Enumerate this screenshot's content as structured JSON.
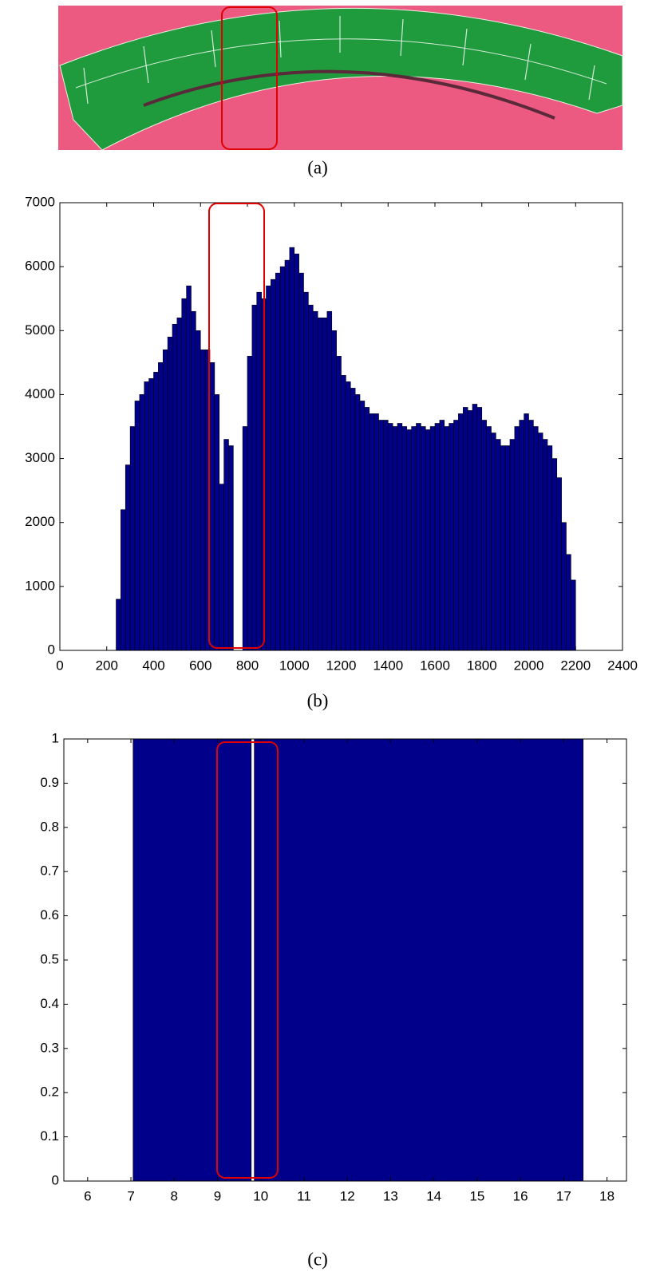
{
  "figure": {
    "caption": "(a)"
  },
  "chart_data": [
    {
      "type": "histogram",
      "caption": "(b)",
      "color": "#00008b",
      "edgecolor": "#000000",
      "bins": [
        240,
        260,
        280,
        300,
        320,
        340,
        360,
        380,
        400,
        420,
        440,
        460,
        480,
        500,
        520,
        540,
        560,
        580,
        600,
        620,
        640,
        660,
        680,
        700,
        720,
        740,
        760,
        780,
        800,
        820,
        840,
        860,
        880,
        900,
        920,
        940,
        960,
        980,
        1000,
        1020,
        1040,
        1060,
        1080,
        1100,
        1120,
        1140,
        1160,
        1180,
        1200,
        1220,
        1240,
        1260,
        1280,
        1300,
        1320,
        1340,
        1360,
        1380,
        1400,
        1420,
        1440,
        1460,
        1480,
        1500,
        1520,
        1540,
        1560,
        1580,
        1600,
        1620,
        1640,
        1660,
        1680,
        1700,
        1720,
        1740,
        1760,
        1780,
        1800,
        1820,
        1840,
        1860,
        1880,
        1900,
        1920,
        1940,
        1960,
        1980,
        2000,
        2020,
        2040,
        2060,
        2080,
        2100,
        2120,
        2140,
        2160,
        2180,
        2200
      ],
      "values": [
        800,
        2200,
        2900,
        3500,
        3900,
        4000,
        4200,
        4250,
        4350,
        4500,
        4700,
        4900,
        5100,
        5200,
        5500,
        5700,
        5300,
        5000,
        4700,
        4700,
        4500,
        4000,
        2600,
        3300,
        3200,
        0,
        0,
        3500,
        4600,
        5400,
        5600,
        5500,
        5700,
        5800,
        5900,
        6000,
        6100,
        6300,
        6200,
        5900,
        5600,
        5400,
        5300,
        5200,
        5200,
        5300,
        5000,
        4600,
        4300,
        4200,
        4100,
        4000,
        3900,
        3800,
        3700,
        3700,
        3600,
        3600,
        3550,
        3500,
        3550,
        3500,
        3450,
        3500,
        3550,
        3500,
        3450,
        3500,
        3550,
        3600,
        3500,
        3550,
        3600,
        3700,
        3800,
        3750,
        3850,
        3800,
        3600,
        3500,
        3400,
        3300,
        3200,
        3200,
        3300,
        3500,
        3600,
        3700,
        3600,
        3500,
        3400,
        3300,
        3200,
        3000,
        2700,
        2000,
        1500,
        1100
      ],
      "xlim": [
        0,
        2400
      ],
      "xticks": [
        0,
        200,
        400,
        600,
        800,
        1000,
        1200,
        1400,
        1600,
        1800,
        2000,
        2200,
        2400
      ],
      "ylim": [
        0,
        7000
      ],
      "yticks": [
        0,
        1000,
        2000,
        3000,
        4000,
        5000,
        6000,
        7000
      ]
    },
    {
      "type": "histogram",
      "caption": "(c)",
      "color": "#00008b",
      "edgecolor": "#000000",
      "bins": [
        7.05,
        9.78,
        9.85,
        17.45
      ],
      "values": [
        1,
        0,
        1
      ],
      "xlim": [
        5.45,
        18.45
      ],
      "xticks": [
        6,
        7,
        8,
        9,
        10,
        11,
        12,
        13,
        14,
        15,
        16,
        17,
        18
      ],
      "ylim": [
        0,
        1
      ],
      "yticks": [
        0,
        0.1,
        0.2,
        0.3,
        0.4,
        0.5,
        0.6,
        0.7,
        0.8,
        0.9,
        1
      ]
    }
  ]
}
